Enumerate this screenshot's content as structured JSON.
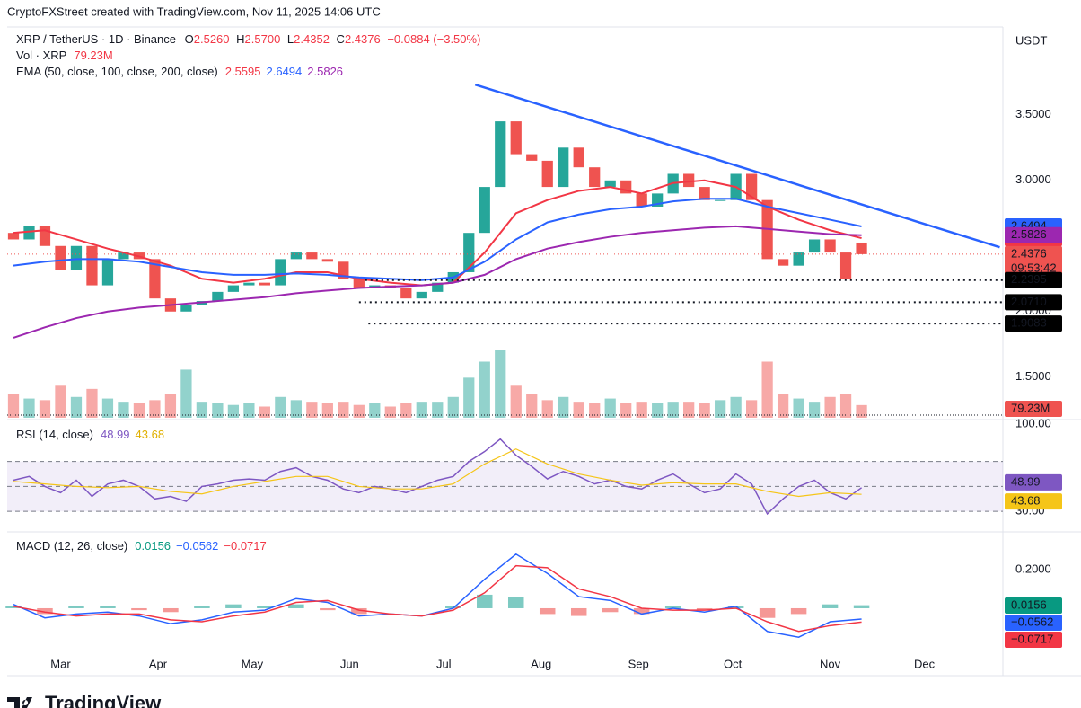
{
  "header": {
    "credit": "CryptoFXStreet created with TradingView.com, Nov 11, 2025 14:06 UTC",
    "currency": "USDT",
    "logo": "TradingView"
  },
  "legend": {
    "symbol": "XRP / TetherUS · 1D · Binance",
    "o_label": "O",
    "open": "2.5260",
    "h_label": "H",
    "high": "2.5700",
    "l_label": "L",
    "low": "2.4352",
    "c_label": "C",
    "close": "2.4376",
    "change": "−0.0884 (−3.50%)",
    "vol": "Vol · XRP",
    "vol_value": "79.23M",
    "ema": "EMA (50, close, 100, close, 200, close)",
    "ema_values": [
      "2.5595",
      "2.6494",
      "2.5826"
    ],
    "rsi": "RSI (14, close)",
    "rsi_values": [
      "48.99",
      "43.68"
    ],
    "macd": "MACD (12, 26, close)",
    "macd_values": [
      "0.0156",
      "−0.0562",
      "−0.0717"
    ],
    "countdown": "09:53:42"
  },
  "chart_data": [
    {
      "type": "candlestick",
      "xlim": [
        -17,
        300
      ],
      "ylim": [
        1.19,
        4.17
      ],
      "yticks": [
        {
          "value": 1.5,
          "label": "1.5000"
        },
        {
          "value": 2,
          "label": "2.0000"
        },
        {
          "value": 3,
          "label": "3.0000"
        },
        {
          "value": 3.5,
          "label": "3.5000"
        }
      ],
      "up_color": "#26a69a",
      "down_color": "#ef5350",
      "x": [
        -15,
        -10,
        -5,
        0,
        5,
        10,
        15,
        20,
        25,
        30,
        35,
        40,
        45,
        50,
        55,
        60,
        65,
        70,
        75,
        80,
        85,
        90,
        95,
        100,
        105,
        110,
        115,
        120,
        125,
        130,
        135,
        140,
        145,
        150,
        155,
        160,
        165,
        170,
        175,
        180,
        185,
        190,
        195,
        200,
        205,
        210,
        215,
        220,
        225,
        230,
        235,
        240,
        245,
        250,
        255
      ],
      "open": [
        2.6,
        2.55,
        2.65,
        2.5,
        2.32,
        2.5,
        2.2,
        2.4,
        2.45,
        2.4,
        2.1,
        2.0,
        2.05,
        2.08,
        2.15,
        2.2,
        2.22,
        2.2,
        2.4,
        2.45,
        2.4,
        2.38,
        2.25,
        2.18,
        2.2,
        2.18,
        2.1,
        2.15,
        2.22,
        2.3,
        2.6,
        2.95,
        3.45,
        3.2,
        3.15,
        2.95,
        3.25,
        3.1,
        2.95,
        3.0,
        2.9,
        2.8,
        2.9,
        3.05,
        2.95,
        2.85,
        2.85,
        3.05,
        2.85,
        2.4,
        2.35,
        2.45,
        2.55,
        2.45,
        2.526
      ],
      "close": [
        2.55,
        2.65,
        2.5,
        2.32,
        2.5,
        2.2,
        2.4,
        2.45,
        2.4,
        2.1,
        2.0,
        2.05,
        2.08,
        2.15,
        2.2,
        2.22,
        2.2,
        2.4,
        2.45,
        2.4,
        2.38,
        2.25,
        2.18,
        2.2,
        2.18,
        2.1,
        2.15,
        2.22,
        2.3,
        2.6,
        2.95,
        3.45,
        3.2,
        3.15,
        2.95,
        3.25,
        3.1,
        2.95,
        3.0,
        2.9,
        2.8,
        2.9,
        3.05,
        2.95,
        2.85,
        2.85,
        3.05,
        2.85,
        2.4,
        2.35,
        2.45,
        2.55,
        2.45,
        2.25,
        2.4376
      ],
      "series": [
        {
          "color": "#f23645",
          "x": [
            -15,
            -5,
            5,
            15,
            25,
            35,
            45,
            55,
            65,
            75,
            85,
            95,
            105,
            115,
            125,
            135,
            145,
            155,
            165,
            175,
            185,
            195,
            205,
            215,
            225,
            235,
            245,
            255
          ],
          "values": [
            2.6,
            2.62,
            2.55,
            2.48,
            2.42,
            2.35,
            2.25,
            2.22,
            2.25,
            2.3,
            2.3,
            2.25,
            2.22,
            2.2,
            2.22,
            2.45,
            2.75,
            2.85,
            2.92,
            2.95,
            2.9,
            2.98,
            3.0,
            2.95,
            2.8,
            2.7,
            2.62,
            2.5595
          ]
        },
        {
          "color": "#2962ff",
          "x": [
            -15,
            -5,
            5,
            15,
            25,
            35,
            45,
            55,
            65,
            75,
            85,
            95,
            105,
            115,
            125,
            135,
            145,
            155,
            165,
            175,
            185,
            195,
            205,
            215,
            225,
            235,
            245,
            255
          ],
          "values": [
            2.35,
            2.38,
            2.4,
            2.4,
            2.38,
            2.34,
            2.3,
            2.28,
            2.28,
            2.29,
            2.28,
            2.26,
            2.25,
            2.24,
            2.26,
            2.38,
            2.55,
            2.68,
            2.74,
            2.78,
            2.8,
            2.84,
            2.86,
            2.86,
            2.8,
            2.75,
            2.7,
            2.6494
          ]
        },
        {
          "color": "#9c27b0",
          "x": [
            -15,
            -5,
            5,
            15,
            25,
            35,
            45,
            55,
            65,
            75,
            85,
            95,
            105,
            115,
            125,
            135,
            145,
            155,
            165,
            175,
            185,
            195,
            205,
            215,
            225,
            235,
            245,
            255
          ],
          "values": [
            1.8,
            1.88,
            1.95,
            2.0,
            2.03,
            2.05,
            2.07,
            2.09,
            2.11,
            2.14,
            2.16,
            2.18,
            2.19,
            2.2,
            2.22,
            2.28,
            2.4,
            2.48,
            2.53,
            2.57,
            2.6,
            2.62,
            2.64,
            2.65,
            2.63,
            2.61,
            2.59,
            2.5826
          ]
        }
      ],
      "trendline": {
        "color": "#2962ff",
        "x": [
          132,
          299
        ],
        "values": [
          3.73,
          2.49
        ]
      },
      "levels": [
        {
          "value": 2.2395,
          "label": "2.2395",
          "from": 97
        },
        {
          "value": 2.071,
          "label": "2.0710",
          "from": 95
        },
        {
          "value": 1.9083,
          "label": "1.9083",
          "from": 98
        }
      ]
    },
    {
      "type": "bar",
      "xlim": [
        -17,
        300
      ],
      "x": [
        -15,
        -10,
        -5,
        0,
        5,
        10,
        15,
        20,
        25,
        30,
        35,
        40,
        45,
        50,
        55,
        60,
        65,
        70,
        75,
        80,
        85,
        90,
        95,
        100,
        105,
        110,
        115,
        120,
        125,
        130,
        135,
        140,
        145,
        150,
        155,
        160,
        165,
        170,
        175,
        180,
        185,
        190,
        195,
        200,
        205,
        210,
        215,
        220,
        225,
        230,
        235,
        240,
        245,
        250,
        255
      ],
      "values": [
        150,
        120,
        110,
        200,
        130,
        180,
        120,
        100,
        90,
        110,
        150,
        300,
        100,
        90,
        80,
        90,
        70,
        130,
        110,
        100,
        90,
        100,
        80,
        90,
        70,
        90,
        100,
        100,
        130,
        250,
        350,
        420,
        200,
        150,
        110,
        130,
        100,
        90,
        120,
        90,
        100,
        90,
        100,
        100,
        90,
        110,
        130,
        110,
        350,
        150,
        120,
        100,
        130,
        150,
        79.23
      ],
      "last_label": "79.23M",
      "color": "#ef5350"
    },
    {
      "type": "line",
      "xlim": [
        -17,
        300
      ],
      "ylim": [
        15,
        100
      ],
      "yticks": [
        {
          "value": 30,
          "label": "30.00"
        },
        {
          "value": 100,
          "label": "100.00"
        }
      ],
      "bands": [
        70,
        50,
        30
      ],
      "band_color": "#7e57c2",
      "series": [
        {
          "color": "#7e57c2",
          "x": [
            -15,
            -10,
            -5,
            0,
            5,
            10,
            15,
            20,
            25,
            30,
            35,
            40,
            45,
            50,
            55,
            60,
            65,
            70,
            75,
            80,
            85,
            90,
            95,
            100,
            105,
            110,
            115,
            120,
            125,
            130,
            135,
            140,
            145,
            150,
            155,
            160,
            165,
            170,
            175,
            180,
            185,
            190,
            195,
            200,
            205,
            210,
            215,
            220,
            225,
            230,
            235,
            240,
            245,
            250,
            255
          ],
          "values": [
            55,
            58,
            50,
            45,
            55,
            42,
            52,
            55,
            50,
            40,
            42,
            38,
            50,
            52,
            55,
            56,
            55,
            62,
            65,
            58,
            55,
            48,
            45,
            50,
            48,
            45,
            50,
            55,
            58,
            70,
            78,
            88,
            75,
            66,
            56,
            62,
            58,
            52,
            55,
            50,
            48,
            55,
            60,
            52,
            45,
            48,
            60,
            52,
            28,
            40,
            50,
            55,
            45,
            40,
            48.99
          ]
        },
        {
          "color": "#f5c518",
          "x": [
            -15,
            -5,
            5,
            15,
            25,
            35,
            45,
            55,
            65,
            75,
            85,
            95,
            105,
            115,
            125,
            135,
            145,
            155,
            165,
            175,
            185,
            195,
            205,
            215,
            225,
            235,
            245,
            255
          ],
          "values": [
            54,
            52,
            50,
            49,
            50,
            46,
            44,
            50,
            54,
            58,
            58,
            50,
            48,
            48,
            52,
            68,
            80,
            68,
            60,
            55,
            51,
            53,
            52,
            52,
            46,
            42,
            45,
            43.68
          ]
        }
      ]
    },
    {
      "type": "macd",
      "xlim": [
        -17,
        300
      ],
      "ylim": [
        -0.349,
        0.372
      ],
      "yticks": [
        {
          "value": 0.2,
          "label": "0.2000"
        }
      ],
      "xticks": [
        {
          "value": 0,
          "label": "Mar"
        },
        {
          "value": 31,
          "label": "Apr"
        },
        {
          "value": 61,
          "label": "May"
        },
        {
          "value": 92,
          "label": "Jun"
        },
        {
          "value": 122,
          "label": "Jul"
        },
        {
          "value": 153,
          "label": "Aug"
        },
        {
          "value": 184,
          "label": "Sep"
        },
        {
          "value": 214,
          "label": "Oct"
        },
        {
          "value": 245,
          "label": "Nov"
        },
        {
          "value": 275,
          "label": "Dec"
        }
      ],
      "histogram": {
        "up_color": "#26a69a",
        "down_color": "#ef5350",
        "last_color": "#089981",
        "x": [
          -15,
          -5,
          5,
          15,
          25,
          35,
          45,
          55,
          65,
          75,
          85,
          95,
          105,
          115,
          125,
          135,
          145,
          155,
          165,
          175,
          185,
          195,
          205,
          215,
          225,
          235,
          245,
          255
        ],
        "values": [
          0.01,
          -0.03,
          0.01,
          0.01,
          -0.01,
          -0.02,
          0.01,
          0.02,
          0.01,
          0.02,
          -0.01,
          -0.03,
          0,
          0,
          0.01,
          0.07,
          0.06,
          -0.03,
          -0.04,
          -0.02,
          -0.03,
          0.01,
          -0.01,
          0.01,
          -0.05,
          -0.03,
          0.02,
          0.0156
        ]
      },
      "series": [
        {
          "color": "#2962ff",
          "last_label": "−0.0562",
          "x": [
            -15,
            -5,
            5,
            15,
            25,
            35,
            45,
            55,
            65,
            75,
            85,
            95,
            105,
            115,
            125,
            135,
            145,
            155,
            165,
            175,
            185,
            195,
            205,
            215,
            225,
            235,
            245,
            255
          ],
          "values": [
            0.02,
            -0.05,
            -0.03,
            -0.02,
            -0.04,
            -0.08,
            -0.06,
            -0.02,
            -0.01,
            0.05,
            0.03,
            -0.04,
            -0.03,
            -0.04,
            0,
            0.15,
            0.28,
            0.18,
            0.06,
            0.04,
            -0.03,
            0,
            -0.02,
            0.01,
            -0.12,
            -0.15,
            -0.07,
            -0.0562
          ]
        },
        {
          "color": "#f23645",
          "last_label": "−0.0717",
          "x": [
            -15,
            -5,
            5,
            15,
            25,
            35,
            45,
            55,
            65,
            75,
            85,
            95,
            105,
            115,
            125,
            135,
            145,
            155,
            165,
            175,
            185,
            195,
            205,
            215,
            225,
            235,
            245,
            255
          ],
          "values": [
            0.01,
            -0.02,
            -0.04,
            -0.03,
            -0.03,
            -0.06,
            -0.07,
            -0.04,
            -0.02,
            0.03,
            0.04,
            -0.01,
            -0.03,
            -0.04,
            -0.01,
            0.08,
            0.22,
            0.21,
            0.1,
            0.06,
            0,
            -0.01,
            -0.01,
            0,
            -0.07,
            -0.12,
            -0.09,
            -0.0717
          ]
        }
      ]
    }
  ]
}
